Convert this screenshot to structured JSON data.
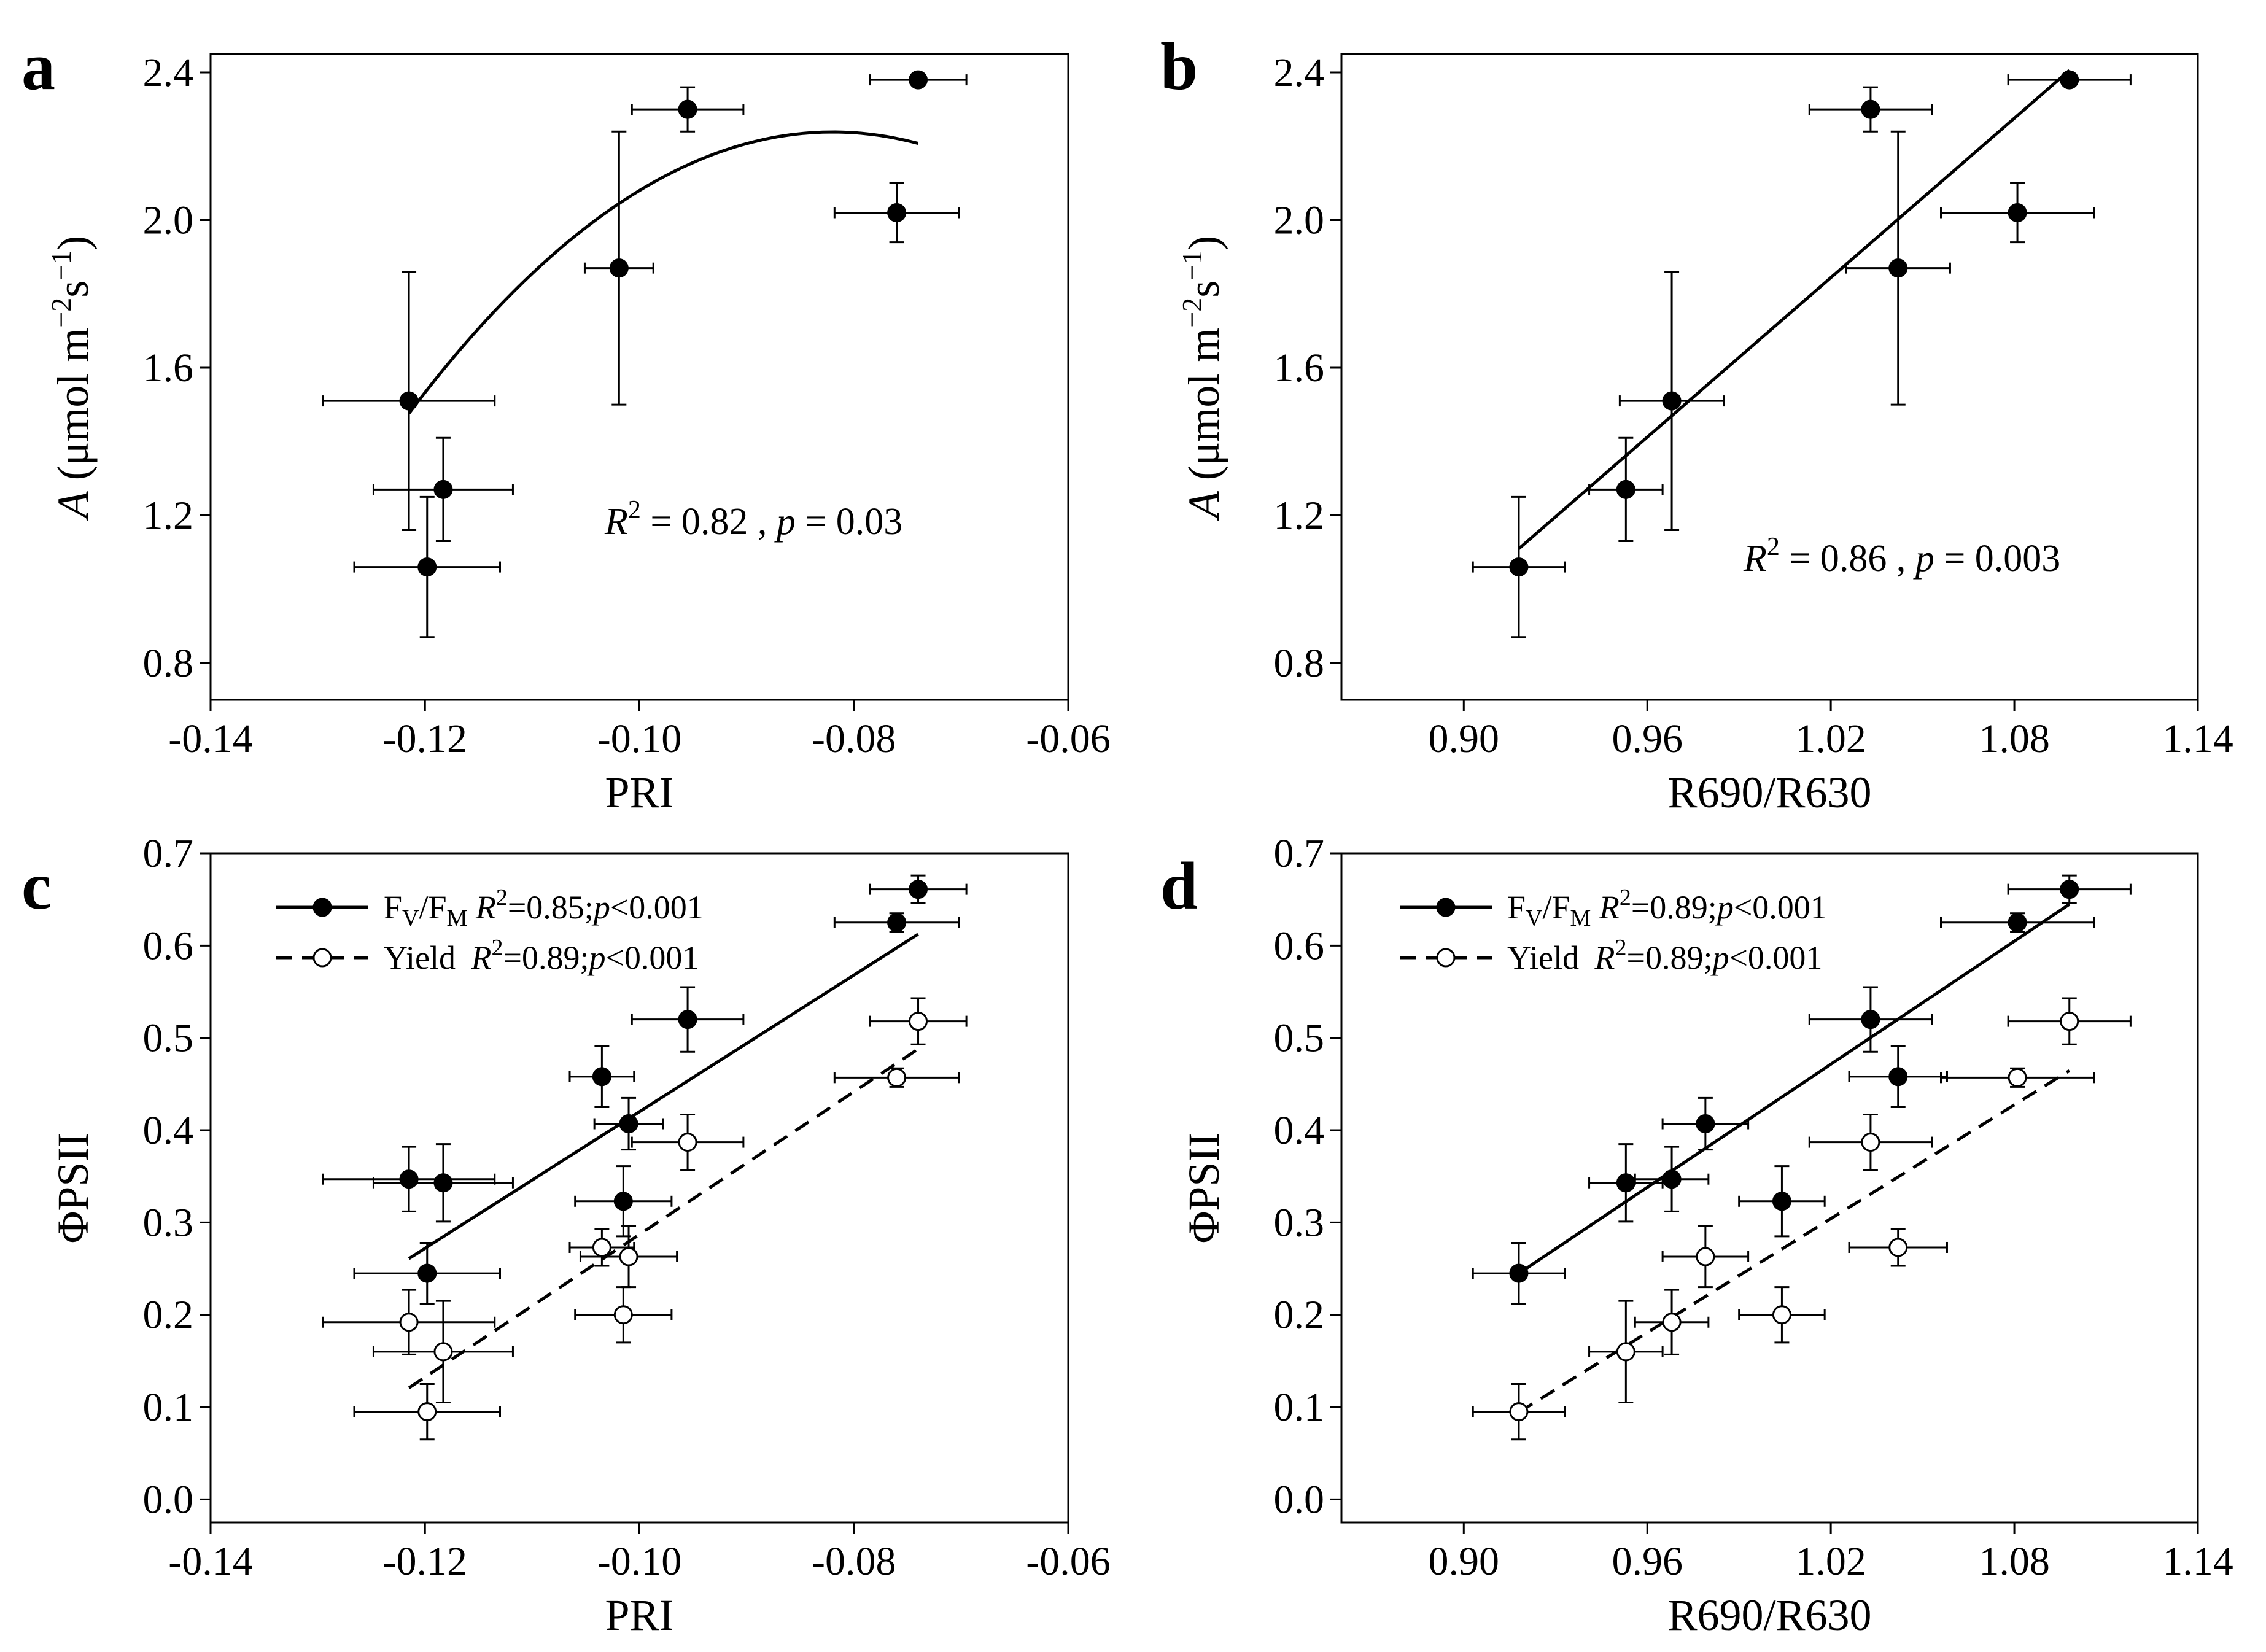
{
  "chart_data": [
    {
      "panel": "a",
      "type": "scatter",
      "xlabel": "PRI",
      "ylabel": {
        "var": "A",
        "unit": " (μmol m",
        "exp1": "−2",
        "mid": "s",
        "exp2": "−1",
        "close": ")"
      },
      "xlim": [
        -0.14,
        -0.06
      ],
      "ylim": [
        0.7,
        2.45
      ],
      "xticks": [
        -0.14,
        -0.12,
        -0.1,
        -0.08,
        -0.06
      ],
      "xtick_labels": [
        "-0.14",
        "-0.12",
        "-0.10",
        "-0.08",
        "-0.06"
      ],
      "yticks": [
        0.8,
        1.2,
        1.6,
        2.0,
        2.4
      ],
      "ytick_labels": [
        "0.8",
        "1.2",
        "1.6",
        "2.0",
        "2.4"
      ],
      "annotation": {
        "r2_label": "R",
        "r2_value": " = 0.82 , ",
        "p_label": "p",
        "p_value": " = 0.03"
      },
      "series": [
        {
          "marker": "filled",
          "points": [
            {
              "x": -0.1215,
              "y": 1.51,
              "xerr": 0.008,
              "yerr": 0.35
            },
            {
              "x": -0.1183,
              "y": 1.27,
              "xerr": 0.0065,
              "yerr": 0.14
            },
            {
              "x": -0.1198,
              "y": 1.06,
              "xerr": 0.0068,
              "yerr": 0.19
            },
            {
              "x": -0.1019,
              "y": 1.87,
              "xerr": 0.0032,
              "yerr": 0.37
            },
            {
              "x": -0.0955,
              "y": 2.3,
              "xerr": 0.0052,
              "yerr": 0.06
            },
            {
              "x": -0.076,
              "y": 2.02,
              "xerr": 0.0058,
              "yerr": 0.08
            },
            {
              "x": -0.074,
              "y": 2.38,
              "xerr": 0.0045,
              "yerr": 0.0
            }
          ],
          "fit": {
            "kind": "quadratic",
            "coef": [
              -1.04,
              -80.0,
              -488.0
            ],
            "x_range": [
              -0.1215,
              -0.074
            ]
          }
        }
      ]
    },
    {
      "panel": "b",
      "type": "scatter",
      "xlabel": "R690/R630",
      "ylabel": {
        "var": "A",
        "unit": " (μmol m",
        "exp1": "−2",
        "mid": "s",
        "exp2": "−1",
        "close": ")"
      },
      "xlim": [
        0.86,
        1.14
      ],
      "ylim": [
        0.7,
        2.45
      ],
      "xticks": [
        0.9,
        0.96,
        1.02,
        1.08,
        1.14
      ],
      "xtick_labels": [
        "0.90",
        "0.96",
        "1.02",
        "1.08",
        "1.14"
      ],
      "yticks": [
        0.8,
        1.2,
        1.6,
        2.0,
        2.4
      ],
      "ytick_labels": [
        "0.8",
        "1.2",
        "1.6",
        "2.0",
        "2.4"
      ],
      "annotation": {
        "r2_label": "R",
        "r2_value": " = 0.86 , ",
        "p_label": "p",
        "p_value": " = 0.003"
      },
      "series": [
        {
          "marker": "filled",
          "points": [
            {
              "x": 0.918,
              "y": 1.06,
              "xerr": 0.015,
              "yerr": 0.19
            },
            {
              "x": 0.953,
              "y": 1.27,
              "xerr": 0.012,
              "yerr": 0.14
            },
            {
              "x": 0.968,
              "y": 1.51,
              "xerr": 0.017,
              "yerr": 0.35
            },
            {
              "x": 1.033,
              "y": 2.3,
              "xerr": 0.02,
              "yerr": 0.06
            },
            {
              "x": 1.042,
              "y": 1.87,
              "xerr": 0.017,
              "yerr": 0.37
            },
            {
              "x": 1.081,
              "y": 2.02,
              "xerr": 0.025,
              "yerr": 0.08
            },
            {
              "x": 1.098,
              "y": 2.38,
              "xerr": 0.02,
              "yerr": 0.0
            }
          ],
          "fit": {
            "kind": "linear",
            "coef": [
              -5.5,
              7.2
            ],
            "x_range": [
              0.918,
              1.098
            ]
          }
        }
      ]
    },
    {
      "panel": "c",
      "type": "scatter",
      "xlabel": "PRI",
      "ylabel_text": "ΦPSII",
      "xlim": [
        -0.14,
        -0.06
      ],
      "ylim": [
        -0.025,
        0.7
      ],
      "xticks": [
        -0.14,
        -0.12,
        -0.1,
        -0.08,
        -0.06
      ],
      "xtick_labels": [
        "-0.14",
        "-0.12",
        "-0.10",
        "-0.08",
        "-0.06"
      ],
      "yticks": [
        0.0,
        0.1,
        0.2,
        0.3,
        0.4,
        0.5,
        0.6,
        0.7
      ],
      "ytick_labels": [
        "0.0",
        "0.1",
        "0.2",
        "0.3",
        "0.4",
        "0.5",
        "0.6",
        "0.7"
      ],
      "legend": [
        {
          "marker": "filled",
          "dash": false,
          "pre": "F",
          "sub1": "V",
          "slash": "/F",
          "sub2": "M",
          "r2": " R",
          "stat": "=0.85;",
          "p": "p",
          "pstat": "<0.001"
        },
        {
          "marker": "open",
          "dash": true,
          "pre": "Yield",
          "sub1": "",
          "slash": "",
          "sub2": "",
          "r2": " R",
          "stat": "=0.89;",
          "p": "p",
          "pstat": "<0.001"
        }
      ],
      "series": [
        {
          "marker": "filled",
          "points": [
            {
              "x": -0.1215,
              "y": 0.347,
              "xerr": 0.008,
              "yerr": 0.035
            },
            {
              "x": -0.1183,
              "y": 0.343,
              "xerr": 0.0065,
              "yerr": 0.042
            },
            {
              "x": -0.1198,
              "y": 0.245,
              "xerr": 0.0068,
              "yerr": 0.033
            },
            {
              "x": -0.1035,
              "y": 0.458,
              "xerr": 0.003,
              "yerr": 0.033
            },
            {
              "x": -0.101,
              "y": 0.407,
              "xerr": 0.0032,
              "yerr": 0.028
            },
            {
              "x": -0.1015,
              "y": 0.323,
              "xerr": 0.0045,
              "yerr": 0.038
            },
            {
              "x": -0.0955,
              "y": 0.52,
              "xerr": 0.0052,
              "yerr": 0.035
            },
            {
              "x": -0.076,
              "y": 0.625,
              "xerr": 0.0058,
              "yerr": 0.01
            },
            {
              "x": -0.074,
              "y": 0.661,
              "xerr": 0.0045,
              "yerr": 0.015
            }
          ],
          "fit": {
            "kind": "linear",
            "coef": [
              1.16,
              7.4
            ],
            "x_range": [
              -0.1215,
              -0.074
            ]
          }
        },
        {
          "marker": "open",
          "points": [
            {
              "x": -0.1215,
              "y": 0.192,
              "xerr": 0.008,
              "yerr": 0.035
            },
            {
              "x": -0.1183,
              "y": 0.16,
              "xerr": 0.0065,
              "yerr": 0.055
            },
            {
              "x": -0.1198,
              "y": 0.095,
              "xerr": 0.0068,
              "yerr": 0.03
            },
            {
              "x": -0.1035,
              "y": 0.273,
              "xerr": 0.003,
              "yerr": 0.02
            },
            {
              "x": -0.101,
              "y": 0.263,
              "xerr": 0.0045,
              "yerr": 0.033
            },
            {
              "x": -0.1015,
              "y": 0.2,
              "xerr": 0.0045,
              "yerr": 0.03
            },
            {
              "x": -0.0955,
              "y": 0.387,
              "xerr": 0.0052,
              "yerr": 0.03
            },
            {
              "x": -0.076,
              "y": 0.457,
              "xerr": 0.0058,
              "yerr": 0.01
            },
            {
              "x": -0.074,
              "y": 0.518,
              "xerr": 0.0045,
              "yerr": 0.025
            }
          ],
          "fit": {
            "kind": "linear",
            "coef": [
              1.06,
              7.73
            ],
            "x_range": [
              -0.1215,
              -0.074
            ]
          }
        }
      ]
    },
    {
      "panel": "d",
      "type": "scatter",
      "xlabel": "R690/R630",
      "ylabel_text": "ΦPSII",
      "xlim": [
        0.86,
        1.14
      ],
      "ylim": [
        -0.025,
        0.7
      ],
      "xticks": [
        0.9,
        0.96,
        1.02,
        1.08,
        1.14
      ],
      "xtick_labels": [
        "0.90",
        "0.96",
        "1.02",
        "1.08",
        "1.14"
      ],
      "yticks": [
        0.0,
        0.1,
        0.2,
        0.3,
        0.4,
        0.5,
        0.6,
        0.7
      ],
      "ytick_labels": [
        "0.0",
        "0.1",
        "0.2",
        "0.3",
        "0.4",
        "0.5",
        "0.6",
        "0.7"
      ],
      "legend": [
        {
          "marker": "filled",
          "dash": false,
          "pre": "F",
          "sub1": "V",
          "slash": "/F",
          "sub2": "M",
          "r2": " R",
          "stat": "=0.89;",
          "p": "p",
          "pstat": "<0.001"
        },
        {
          "marker": "open",
          "dash": true,
          "pre": "Yield",
          "sub1": "",
          "slash": "",
          "sub2": "",
          "r2": " R",
          "stat": "=0.89;",
          "p": "p",
          "pstat": "<0.001"
        }
      ],
      "series": [
        {
          "marker": "filled",
          "points": [
            {
              "x": 0.918,
              "y": 0.245,
              "xerr": 0.015,
              "yerr": 0.033
            },
            {
              "x": 0.953,
              "y": 0.343,
              "xerr": 0.012,
              "yerr": 0.042
            },
            {
              "x": 0.968,
              "y": 0.347,
              "xerr": 0.012,
              "yerr": 0.035
            },
            {
              "x": 0.979,
              "y": 0.407,
              "xerr": 0.014,
              "yerr": 0.028
            },
            {
              "x": 1.004,
              "y": 0.323,
              "xerr": 0.014,
              "yerr": 0.038
            },
            {
              "x": 1.033,
              "y": 0.52,
              "xerr": 0.02,
              "yerr": 0.035
            },
            {
              "x": 1.042,
              "y": 0.458,
              "xerr": 0.016,
              "yerr": 0.033
            },
            {
              "x": 1.081,
              "y": 0.625,
              "xerr": 0.025,
              "yerr": 0.01
            },
            {
              "x": 1.098,
              "y": 0.661,
              "xerr": 0.02,
              "yerr": 0.015
            }
          ],
          "fit": {
            "kind": "linear",
            "coef": [
              -1.795,
              2.222
            ],
            "x_range": [
              0.918,
              1.098
            ]
          }
        },
        {
          "marker": "open",
          "points": [
            {
              "x": 0.918,
              "y": 0.095,
              "xerr": 0.015,
              "yerr": 0.03
            },
            {
              "x": 0.953,
              "y": 0.16,
              "xerr": 0.012,
              "yerr": 0.055
            },
            {
              "x": 0.968,
              "y": 0.192,
              "xerr": 0.012,
              "yerr": 0.035
            },
            {
              "x": 0.979,
              "y": 0.263,
              "xerr": 0.014,
              "yerr": 0.033
            },
            {
              "x": 1.004,
              "y": 0.2,
              "xerr": 0.014,
              "yerr": 0.03
            },
            {
              "x": 1.033,
              "y": 0.387,
              "xerr": 0.02,
              "yerr": 0.03
            },
            {
              "x": 1.042,
              "y": 0.273,
              "xerr": 0.016,
              "yerr": 0.02
            },
            {
              "x": 1.081,
              "y": 0.457,
              "xerr": 0.025,
              "yerr": 0.01
            },
            {
              "x": 1.098,
              "y": 0.518,
              "xerr": 0.02,
              "yerr": 0.025
            }
          ],
          "fit": {
            "kind": "linear",
            "coef": [
              -1.793,
              2.056
            ],
            "x_range": [
              0.918,
              1.098
            ]
          }
        }
      ]
    }
  ]
}
